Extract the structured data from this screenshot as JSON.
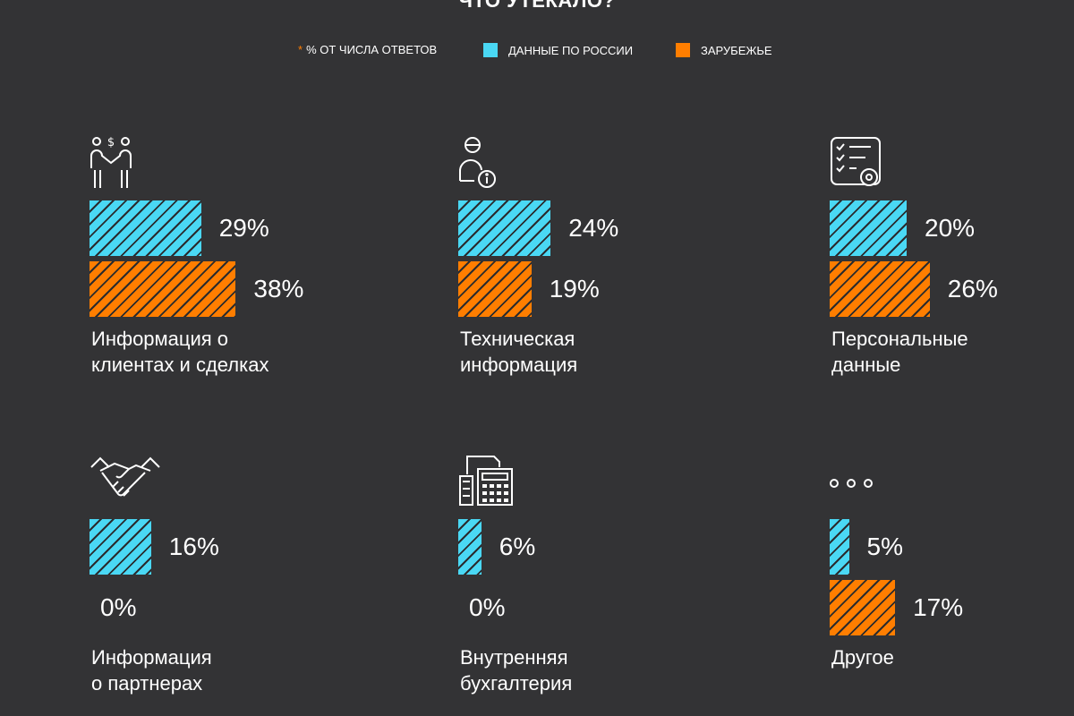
{
  "title": "ЧТО УТЕКАЛО?",
  "legend": {
    "asterisk": "*",
    "note": "% ОТ ЧИСЛА ОТВЕТОВ",
    "russia": "ДАННЫЕ ПО РОССИИ",
    "foreign": "ЗАРУБЕЖЬЕ"
  },
  "colors": {
    "russia": "#4ad8f4",
    "foreign": "#ff7e00",
    "background": "#333335"
  },
  "chart_data": {
    "type": "bar",
    "categories": [
      "Информация о клиентах и сделках",
      "Техническая информация",
      "Персональные данные",
      "Информация о партнерах",
      "Внутренняя бухгалтерия",
      "Другое"
    ],
    "series": [
      {
        "name": "ДАННЫЕ ПО РОССИИ",
        "values": [
          29,
          24,
          20,
          16,
          6,
          5
        ]
      },
      {
        "name": "ЗАРУБЕЖЬЕ",
        "values": [
          38,
          19,
          26,
          0,
          0,
          17
        ]
      }
    ],
    "unit": "%"
  },
  "items": [
    {
      "icon": "handshake-money-icon",
      "label_line1": "Информация о",
      "label_line2": "клиентах и сделках",
      "ru_text": "29%",
      "fo_text": "38%"
    },
    {
      "icon": "user-info-icon",
      "label_line1": "Техническая",
      "label_line2": "информация",
      "ru_text": "24%",
      "fo_text": "19%"
    },
    {
      "icon": "checklist-gear-icon",
      "label_line1": "Персональные",
      "label_line2": "данные",
      "ru_text": "20%",
      "fo_text": "26%"
    },
    {
      "icon": "handshake-icon",
      "label_line1": "Информация",
      "label_line2": "о партнерах",
      "ru_text": "16%",
      "fo_text": "0%"
    },
    {
      "icon": "calculator-document-icon",
      "label_line1": "Внутренняя",
      "label_line2": "бухгалтерия",
      "ru_text": "6%",
      "fo_text": "0%"
    },
    {
      "icon": "ellipsis-icon",
      "label_line1": "Другое",
      "label_line2": "",
      "ru_text": "5%",
      "fo_text": "17%"
    }
  ]
}
